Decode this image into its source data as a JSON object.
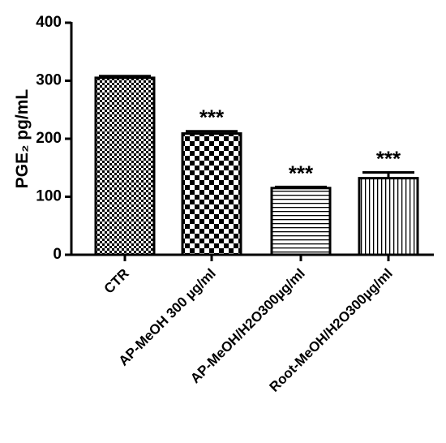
{
  "chart_data": {
    "type": "bar",
    "y_label": "PGE₂ pg/mL",
    "categories": [
      "CTR",
      "AP-MeOH 300 µg/ml",
      "AP-MeOH/H2O300µg/ml",
      "Root-MeOH/H2O300µg/ml"
    ],
    "values": [
      305,
      209,
      115,
      132
    ],
    "errors": [
      3,
      4,
      2,
      10
    ],
    "significance": [
      null,
      "***",
      "***",
      "***"
    ],
    "patterns": [
      "fine-check",
      "check",
      "horizontal",
      "vertical"
    ],
    "color": "#000000",
    "ylim": [
      0,
      400
    ],
    "yticks": [
      0,
      100,
      200,
      300,
      400
    ],
    "grid": false
  }
}
